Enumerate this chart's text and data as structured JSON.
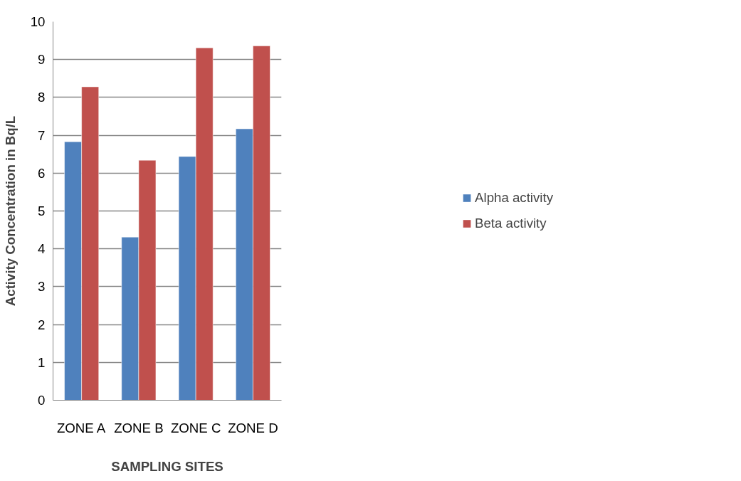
{
  "chart_data": {
    "type": "bar",
    "xlabel": "SAMPLING SITES",
    "ylabel": "Activity Concentration in Bq/L",
    "categories": [
      "ZONE A",
      "ZONE B",
      "ZONE C",
      "ZONE D"
    ],
    "series": [
      {
        "name": "Alpha activity",
        "color": "#4f81bd",
        "values": [
          6.83,
          4.31,
          6.44,
          7.17
        ]
      },
      {
        "name": "Beta activity",
        "color": "#c0504d",
        "values": [
          8.28,
          6.34,
          9.31,
          9.36
        ]
      }
    ],
    "ylim": [
      0,
      10
    ],
    "yticks": [
      0,
      1,
      2,
      3,
      4,
      5,
      6,
      7,
      8,
      9,
      10
    ],
    "grid": "y",
    "legend": "right"
  }
}
